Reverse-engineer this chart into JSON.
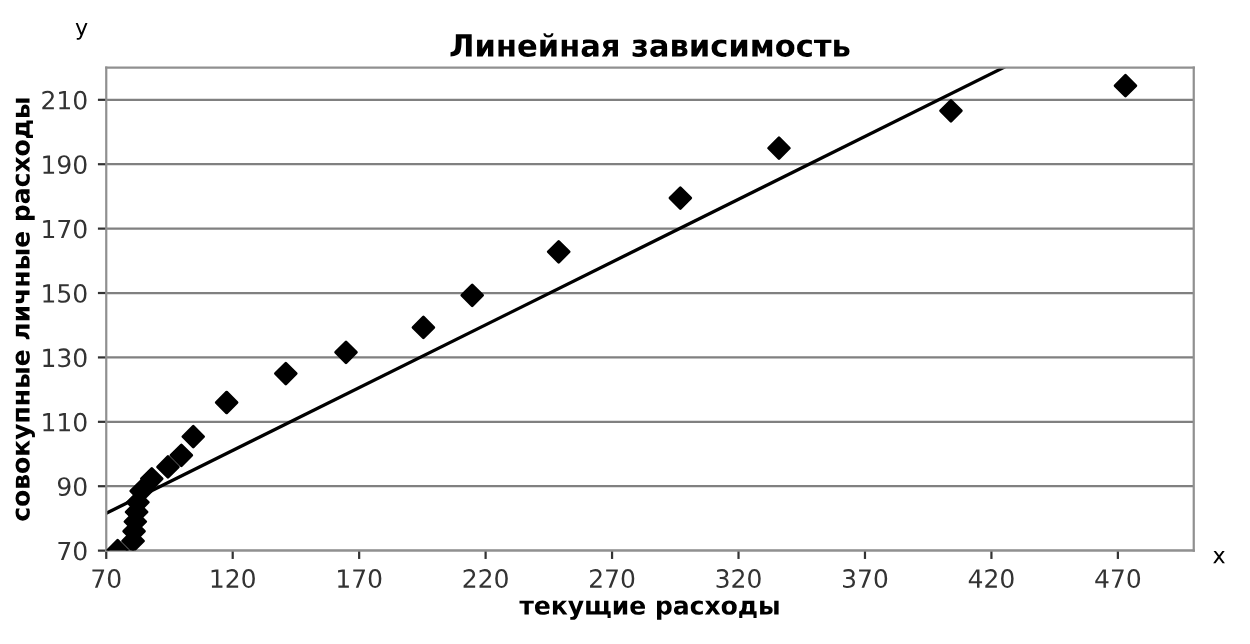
{
  "chart_data": {
    "type": "scatter",
    "title": "Линейная зависимость",
    "xlabel": "текущие расходы",
    "ylabel": "совокупные личные расходы",
    "annotations": [
      "y",
      "x"
    ],
    "xlim": [
      70,
      500
    ],
    "xticks": [
      70,
      120,
      170,
      220,
      270,
      320,
      370,
      420,
      470
    ],
    "ylim": [
      70,
      220
    ],
    "yticks": [
      70,
      90,
      110,
      130,
      150,
      170,
      190,
      210
    ],
    "grid": "y",
    "legend": false,
    "series": [
      {
        "color": "#000000",
        "marker": "diamond",
        "x": [
          74.5,
          80.6,
          81,
          81.5,
          82,
          82.5,
          83,
          83.8,
          88,
          94.4,
          99.7,
          104.4,
          117.6,
          141,
          164.8,
          195.4,
          214.7,
          248.9,
          297,
          336,
          404,
          473
        ],
        "values": [
          70,
          73,
          76,
          79,
          82,
          85,
          null,
          88.5,
          92.3,
          96,
          99.6,
          105.4,
          116,
          125,
          131.6,
          139.3,
          149.3,
          162.8,
          179.5,
          195,
          206.6,
          214.4
        ]
      },
      {
        "type": "line",
        "color": "#000000",
        "marker": "none",
        "line_style": "solid",
        "x": [
          70,
          424.8
        ],
        "values": [
          81.6,
          220
        ]
      }
    ]
  }
}
